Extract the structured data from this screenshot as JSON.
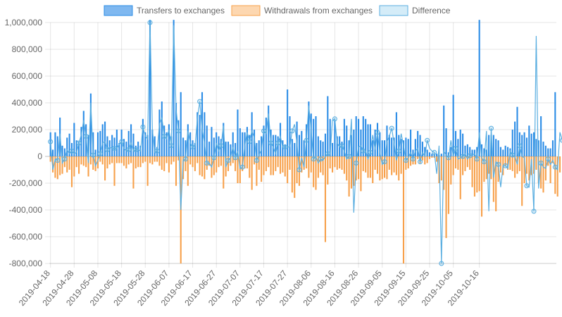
{
  "chart_data": {
    "type": "bar",
    "title": "",
    "xlabel": "",
    "ylabel": "",
    "ylim": [
      -800000,
      1000000
    ],
    "y_ticks": [
      "1,000,000",
      "800,000",
      "600,000",
      "400,000",
      "200,000",
      "0",
      "-200,000",
      "-400,000",
      "-600,000",
      "-800,000"
    ],
    "x_tick_labels": [
      "2019-04-18",
      "2019-04-28",
      "2019-05-08",
      "2019-05-18",
      "2019-05-28",
      "2019-06-07",
      "2019-06-17",
      "2019-06-27",
      "2019-07-07",
      "2019-07-17",
      "2019-07-27",
      "2019-08-06",
      "2019-08-16",
      "2019-08-26",
      "2019-09-05",
      "2019-09-15",
      "2019-09-25",
      "2019-10-05",
      "2019-10-16"
    ],
    "start_date": "2019-04-18",
    "grid": true,
    "legend_position": "top",
    "colors": {
      "transfers_fill": "#2b8ce6",
      "transfers_legend_fill": "#7fb8f0",
      "transfers_border": "#2b8ce6",
      "withdrawals_fill": "#f7a04a",
      "withdrawals_legend_fill": "#fdd7b0",
      "withdrawals_border": "#f7a04a",
      "difference_line": "#5aaee0",
      "difference_legend_fill": "#d4ecf8",
      "difference_point": "#5aaee0"
    },
    "series": [
      {
        "name": "Transfers to exchanges",
        "type": "bar",
        "values": [
          180000,
          50000,
          180000,
          150000,
          290000,
          80000,
          60000,
          140000,
          170000,
          100000,
          250000,
          120000,
          110000,
          220000,
          340000,
          240000,
          160000,
          470000,
          180000,
          50000,
          180000,
          190000,
          240000,
          260000,
          150000,
          120000,
          160000,
          140000,
          200000,
          100000,
          200000,
          130000,
          110000,
          190000,
          240000,
          170000,
          80000,
          110000,
          80000,
          280000,
          180000,
          160000,
          1020000,
          200000,
          150000,
          70000,
          350000,
          410000,
          230000,
          180000,
          240000,
          150000,
          1020000,
          400000,
          270000,
          480000,
          140000,
          120000,
          240000,
          180000,
          120000,
          100000,
          330000,
          310000,
          480000,
          330000,
          230000,
          110000,
          220000,
          140000,
          180000,
          150000,
          130000,
          250000,
          110000,
          110000,
          90000,
          180000,
          100000,
          350000,
          210000,
          180000,
          180000,
          220000,
          160000,
          330000,
          200000,
          100000,
          120000,
          150000,
          230000,
          290000,
          380000,
          200000,
          160000,
          160000,
          150000,
          250000,
          120000,
          90000,
          500000,
          300000,
          130000,
          100000,
          260000,
          160000,
          190000,
          120000,
          240000,
          410000,
          320000,
          280000,
          300000,
          150000,
          120000,
          110000,
          170000,
          450000,
          280000,
          100000,
          270000,
          150000,
          150000,
          110000,
          280000,
          230000,
          120000,
          160000,
          200000,
          300000,
          280000,
          200000,
          300000,
          280000,
          240000,
          240000,
          120000,
          200000,
          250000,
          180000,
          120000,
          120000,
          230000,
          160000,
          140000,
          140000,
          330000,
          160000,
          130000,
          120000,
          140000,
          130000,
          200000,
          50000,
          130000,
          190000,
          160000,
          110000,
          70000,
          50000,
          30000,
          20000,
          20000,
          20000,
          10000,
          20000,
          380000,
          210000,
          30000,
          70000,
          460000,
          190000,
          130000,
          200000,
          170000,
          80000,
          90000,
          70000,
          50000,
          50000,
          70000,
          1020000,
          90000,
          60000,
          50000,
          160000,
          160000,
          160000,
          130000,
          120000,
          70000,
          50000,
          80000,
          70000,
          60000,
          200000,
          260000,
          370000,
          180000,
          160000,
          180000,
          140000,
          230000,
          170000,
          180000,
          130000,
          120000,
          300000,
          110000,
          80000,
          60000,
          60000,
          120000,
          480000
        ]
      },
      {
        "name": "Withdrawals from exchanges",
        "type": "bar",
        "values": [
          -40000,
          -120000,
          -160000,
          -170000,
          -140000,
          -130000,
          -80000,
          -120000,
          -100000,
          -230000,
          -150000,
          -80000,
          -130000,
          -60000,
          -70000,
          -80000,
          -150000,
          -60000,
          -100000,
          -110000,
          -90000,
          -40000,
          -60000,
          -180000,
          -90000,
          -60000,
          -50000,
          -220000,
          -50000,
          -50000,
          -50000,
          -70000,
          -90000,
          -60000,
          -50000,
          -240000,
          -90000,
          -80000,
          -80000,
          -50000,
          -40000,
          -220000,
          -50000,
          -60000,
          -40000,
          -40000,
          -70000,
          -100000,
          -110000,
          -50000,
          -120000,
          -60000,
          -40000,
          -220000,
          -30000,
          -800000,
          -170000,
          -110000,
          -220000,
          -60000,
          -80000,
          -110000,
          -50000,
          -140000,
          -150000,
          -170000,
          -100000,
          -70000,
          -160000,
          -140000,
          -120000,
          -80000,
          -70000,
          -240000,
          -150000,
          -110000,
          -70000,
          -50000,
          -110000,
          -200000,
          -200000,
          -110000,
          -90000,
          -90000,
          -160000,
          -250000,
          -60000,
          -220000,
          -100000,
          -190000,
          -140000,
          -110000,
          -80000,
          -140000,
          -140000,
          -110000,
          -80000,
          -130000,
          -120000,
          -150000,
          -200000,
          -100000,
          -270000,
          -310000,
          -200000,
          -220000,
          -120000,
          -100000,
          -90000,
          -160000,
          -120000,
          -230000,
          -250000,
          -160000,
          -120000,
          -140000,
          -640000,
          -210000,
          -90000,
          -120000,
          -80000,
          -100000,
          -90000,
          -100000,
          -130000,
          -180000,
          -300000,
          -240000,
          -220000,
          -180000,
          -170000,
          -260000,
          -110000,
          -120000,
          -160000,
          -160000,
          -200000,
          -100000,
          -130000,
          -180000,
          -170000,
          -160000,
          -170000,
          -100000,
          -140000,
          -120000,
          -140000,
          -180000,
          -130000,
          -800000,
          -100000,
          -90000,
          -70000,
          -60000,
          -60000,
          -20000,
          -50000,
          -30000,
          -60000,
          -50000,
          -20000,
          -10000,
          -10000,
          -40000,
          -200000,
          -180000,
          -250000,
          -610000,
          -430000,
          -210000,
          -140000,
          -90000,
          -100000,
          -320000,
          -140000,
          -110000,
          -80000,
          -100000,
          -230000,
          -300000,
          -270000,
          -260000,
          -450000,
          -190000,
          -170000,
          -130000,
          -170000,
          -340000,
          -410000,
          -190000,
          -120000,
          -140000,
          -70000,
          -100000,
          -100000,
          -110000,
          -160000,
          -130000,
          -110000,
          -370000,
          -200000,
          -130000,
          -180000,
          -140000,
          -130000,
          -100000,
          -200000,
          -240000,
          -270000,
          -180000,
          -70000,
          -200000,
          -50000,
          -280000,
          -300000,
          -120000
        ]
      },
      {
        "name": "Difference",
        "type": "line",
        "values": [
          110000,
          -100000,
          -20000,
          -30000,
          170000,
          -50000,
          -20000,
          50000,
          20000,
          40000,
          20000,
          30000,
          100000,
          160000,
          270000,
          150000,
          -50000,
          400000,
          10000,
          -70000,
          -30000,
          20000,
          100000,
          110000,
          50000,
          70000,
          60000,
          60000,
          60000,
          90000,
          110000,
          60000,
          40000,
          50000,
          100000,
          40000,
          50000,
          50000,
          40000,
          220000,
          150000,
          130000,
          1000000,
          200000,
          30000,
          40000,
          240000,
          290000,
          150000,
          130000,
          200000,
          80000,
          980000,
          350000,
          190000,
          -400000,
          -30000,
          -20000,
          190000,
          100000,
          70000,
          80000,
          280000,
          410000,
          200000,
          100000,
          -50000,
          -50000,
          -80000,
          -10000,
          100000,
          40000,
          80000,
          230000,
          -80000,
          -30000,
          -10000,
          70000,
          -10000,
          40000,
          -90000,
          -80000,
          80000,
          180000,
          110000,
          190000,
          140000,
          -30000,
          10000,
          50000,
          190000,
          170000,
          320000,
          100000,
          70000,
          20000,
          100000,
          150000,
          70000,
          70000,
          70000,
          70000,
          190000,
          240000,
          100000,
          -100000,
          -10000,
          -80000,
          120000,
          380000,
          200000,
          -20000,
          0,
          -50000,
          -20000,
          -30000,
          0,
          20000,
          10000,
          270000,
          280000,
          100000,
          70000,
          80000,
          40000,
          -20000,
          0,
          280000,
          -420000,
          -50000,
          70000,
          80000,
          40000,
          40000,
          -20000,
          30000,
          160000,
          50000,
          180000,
          30000,
          -60000,
          -40000,
          110000,
          150000,
          210000,
          100000,
          -30000,
          40000,
          170000,
          80000,
          -30000,
          -10000,
          30000,
          -20000,
          40000,
          60000,
          -40000,
          30000,
          0,
          120000,
          60000,
          40000,
          30000,
          -130000,
          80000,
          -800000,
          40000,
          10000,
          -10000,
          120000,
          0,
          60000,
          -20000,
          -10000,
          0,
          20000,
          -20000,
          5000,
          10000,
          20000,
          -20000,
          180000,
          -10000,
          -40000,
          190000,
          -410000,
          210000,
          -160000,
          -40000,
          -60000,
          -230000,
          -70000,
          -70000,
          -90000,
          40000,
          10000,
          0,
          -60000,
          80000,
          0,
          -10000,
          -220000,
          -230000,
          -20000,
          -410000,
          900000,
          -240000,
          -50000,
          -80000,
          -90000,
          -20000,
          -60000,
          -30000,
          -80000,
          -100000,
          180000,
          120000,
          270000,
          -230000,
          -80000,
          -100000,
          -130000,
          -100000,
          40000,
          30000,
          0,
          -50000,
          -30000,
          -250000,
          280000
        ]
      }
    ]
  }
}
